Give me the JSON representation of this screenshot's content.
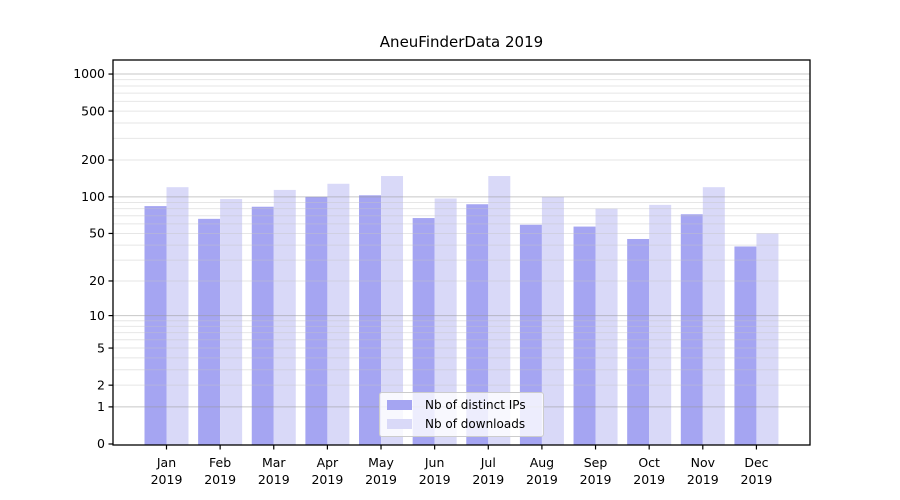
{
  "chart_data": {
    "type": "bar",
    "title": "AneuFinderData 2019",
    "yscale": "log1p",
    "grid": true,
    "months": [
      "Jan",
      "Feb",
      "Mar",
      "Apr",
      "May",
      "Jun",
      "Jul",
      "Aug",
      "Sep",
      "Oct",
      "Nov",
      "Dec"
    ],
    "year_label": "2019",
    "series": [
      {
        "name": "Nb of distinct IPs",
        "color": "#a5a5f2",
        "values": [
          84,
          66,
          83,
          100,
          103,
          67,
          87,
          59,
          57,
          45,
          72,
          39
        ]
      },
      {
        "name": "Nb of downloads",
        "color": "#d9d9f8",
        "values": [
          120,
          96,
          114,
          128,
          148,
          97,
          148,
          100,
          80,
          86,
          120,
          50
        ]
      }
    ],
    "yticks": [
      0,
      1,
      2,
      5,
      10,
      20,
      50,
      100,
      200,
      500,
      1000
    ],
    "ytick_labels": [
      "0",
      "1",
      "2",
      "5",
      "10",
      "20",
      "50",
      "100",
      "200",
      "500",
      "1000"
    ],
    "ylim": [
      0,
      1300
    ],
    "legend": {
      "position": "bottom-center",
      "entries": [
        "Nb of distinct IPs",
        "Nb of downloads"
      ]
    },
    "colors": {
      "major_grid": "#9a9a9a",
      "minor_grid": "#c4c4c4",
      "axis": "#000000"
    }
  }
}
